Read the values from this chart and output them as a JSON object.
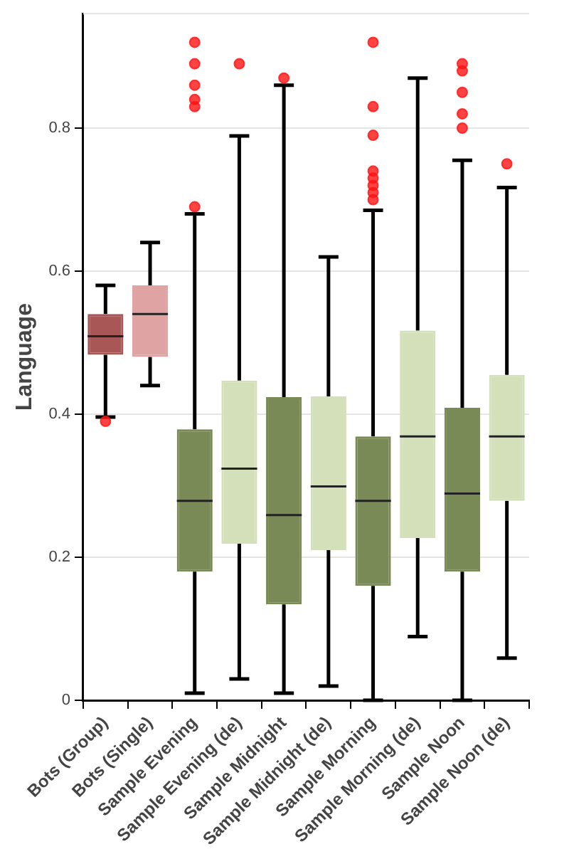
{
  "chart_data": {
    "type": "box",
    "ylabel": "Language",
    "categories": [
      "Bots (Group)",
      "Bots (Single)",
      "Sample Evening",
      "Sample Evening (de)",
      "Sample Midnight",
      "Sample Midnight (de)",
      "Sample Morning",
      "Sample Morning (de)",
      "Sample Noon",
      "Sample Noon (de)"
    ],
    "colors": [
      "#a85656",
      "#e0a3a3",
      "#7a8a56",
      "#d4e0ba",
      "#7a8a56",
      "#d4e0ba",
      "#7a8a56",
      "#d4e0ba",
      "#7a8a56",
      "#d4e0ba"
    ],
    "boxes": [
      {
        "low": 0.396,
        "q1": 0.483,
        "median": 0.509,
        "q3": 0.54,
        "high": 0.58,
        "outliers": [
          0.39
        ]
      },
      {
        "low": 0.44,
        "q1": 0.48,
        "median": 0.54,
        "q3": 0.58,
        "high": 0.64
      },
      {
        "low": 0.01,
        "q1": 0.18,
        "median": 0.279,
        "q3": 0.379,
        "high": 0.68,
        "outliers": [
          0.92,
          0.89,
          0.86,
          0.84,
          0.83,
          0.69
        ]
      },
      {
        "low": 0.03,
        "q1": 0.219,
        "median": 0.324,
        "q3": 0.447,
        "high": 0.789,
        "outliers": [
          0.89
        ]
      },
      {
        "low": 0.01,
        "q1": 0.134,
        "median": 0.259,
        "q3": 0.424,
        "high": 0.86,
        "outliers": [
          0.87
        ]
      },
      {
        "low": 0.02,
        "q1": 0.21,
        "median": 0.299,
        "q3": 0.425,
        "high": 0.62
      },
      {
        "low": 0,
        "q1": 0.16,
        "median": 0.279,
        "q3": 0.369,
        "high": 0.685,
        "outliers": [
          0.92,
          0.83,
          0.79,
          0.74,
          0.73,
          0.72,
          0.71,
          0.7
        ]
      },
      {
        "low": 0.089,
        "q1": 0.227,
        "median": 0.369,
        "q3": 0.517,
        "high": 0.87
      },
      {
        "low": 0,
        "q1": 0.18,
        "median": 0.289,
        "q3": 0.409,
        "high": 0.755,
        "outliers": [
          0.89,
          0.88,
          0.85,
          0.82,
          0.8
        ]
      },
      {
        "low": 0.059,
        "q1": 0.279,
        "median": 0.369,
        "q3": 0.455,
        "high": 0.717,
        "outliers": [
          0.75
        ]
      }
    ],
    "ylim": [
      0,
      0.96
    ],
    "yticks": [
      0,
      0.2,
      0.4,
      0.6,
      0.8
    ],
    "grid": "y"
  }
}
